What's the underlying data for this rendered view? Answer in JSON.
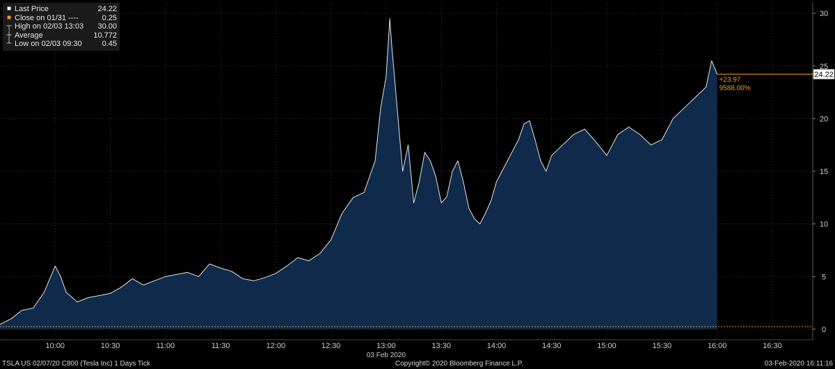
{
  "chart_data": {
    "type": "area",
    "xlabel": "03 Feb 2020",
    "ylim": [
      -1,
      31
    ],
    "yticks": [
      0,
      5,
      10,
      15,
      20,
      25,
      30
    ],
    "xticks": [
      "10:00",
      "10:30",
      "11:00",
      "11:30",
      "12:00",
      "12:30",
      "13:00",
      "13:30",
      "14:00",
      "14:30",
      "15:00",
      "15:30",
      "16:00",
      "16:30"
    ],
    "xlim": [
      "09:30",
      "16:52"
    ],
    "series": [
      {
        "name": "Last Price",
        "x": [
          "09:30",
          "09:36",
          "09:42",
          "09:48",
          "09:54",
          "10:00",
          "10:03",
          "10:06",
          "10:12",
          "10:18",
          "10:24",
          "10:30",
          "10:36",
          "10:42",
          "10:48",
          "10:54",
          "11:00",
          "11:06",
          "11:12",
          "11:18",
          "11:24",
          "11:30",
          "11:36",
          "11:42",
          "11:48",
          "11:54",
          "12:00",
          "12:06",
          "12:12",
          "12:18",
          "12:24",
          "12:30",
          "12:36",
          "12:42",
          "12:48",
          "12:54",
          "12:57",
          "13:00",
          "13:02",
          "13:03",
          "13:06",
          "13:09",
          "13:12",
          "13:15",
          "13:18",
          "13:21",
          "13:24",
          "13:27",
          "13:30",
          "13:33",
          "13:36",
          "13:39",
          "13:42",
          "13:45",
          "13:48",
          "13:51",
          "13:54",
          "13:57",
          "14:00",
          "14:06",
          "14:12",
          "14:15",
          "14:18",
          "14:21",
          "14:24",
          "14:27",
          "14:30",
          "14:36",
          "14:42",
          "14:48",
          "14:54",
          "15:00",
          "15:06",
          "15:12",
          "15:18",
          "15:24",
          "15:30",
          "15:36",
          "15:42",
          "15:48",
          "15:54",
          "15:57",
          "16:00"
        ],
        "values": [
          0.45,
          1.0,
          1.8,
          2.0,
          3.5,
          6.0,
          5.0,
          3.5,
          2.6,
          3.0,
          3.2,
          3.4,
          4.0,
          4.8,
          4.2,
          4.6,
          5.0,
          5.2,
          5.4,
          5.0,
          6.2,
          5.8,
          5.5,
          4.8,
          4.6,
          4.9,
          5.3,
          6.0,
          6.8,
          6.5,
          7.2,
          8.5,
          11.0,
          12.5,
          13.0,
          16.0,
          21.0,
          24.0,
          29.5,
          27.0,
          21.0,
          15.0,
          17.5,
          12.0,
          14.0,
          16.8,
          16.0,
          14.5,
          12.0,
          12.6,
          15.0,
          16.0,
          14.0,
          11.5,
          10.5,
          10.0,
          11.0,
          12.2,
          14.0,
          16.0,
          18.0,
          19.5,
          19.8,
          18.0,
          16.0,
          15.0,
          16.5,
          17.5,
          18.5,
          19.0,
          17.8,
          16.5,
          18.5,
          19.2,
          18.5,
          17.5,
          18.0,
          20.0,
          21.0,
          22.0,
          23.0,
          25.5,
          24.22
        ]
      },
      {
        "name": "Close on 01/31",
        "values": [
          0.25
        ]
      }
    ],
    "last_label": "24.22",
    "change": "+23.97",
    "change_pct": "9588.00%",
    "grid": "dotted",
    "colors": {
      "area": "#0f2a4a",
      "area_line": "#e6e6e6",
      "close": "#f39c1a",
      "accent": "#f39c1a",
      "grid": "#3a3a3a",
      "axis_text": "#d0d0d0"
    }
  },
  "legend": {
    "items": [
      {
        "swatch": "square-white",
        "label": "Last Price",
        "value": "24.22"
      },
      {
        "swatch": "square-orange",
        "label": "Close on 01/31 ----",
        "value": "0.25"
      },
      {
        "swatch": "high-marker",
        "label": "High on 02/03 13:03",
        "value": "30.00"
      },
      {
        "swatch": "average-marker",
        "label": "Average",
        "value": "10.772"
      },
      {
        "swatch": "low-marker",
        "label": "Low on 02/03 09:30",
        "value": "0.45"
      }
    ]
  },
  "footer": {
    "left": "TSLA US 02/07/20 C800 (Tesla Inc) 1 Days Tick",
    "center": "Copyright© 2020 Bloomberg Finance L.P.",
    "right": "03-Feb-2020 16:11:16"
  }
}
